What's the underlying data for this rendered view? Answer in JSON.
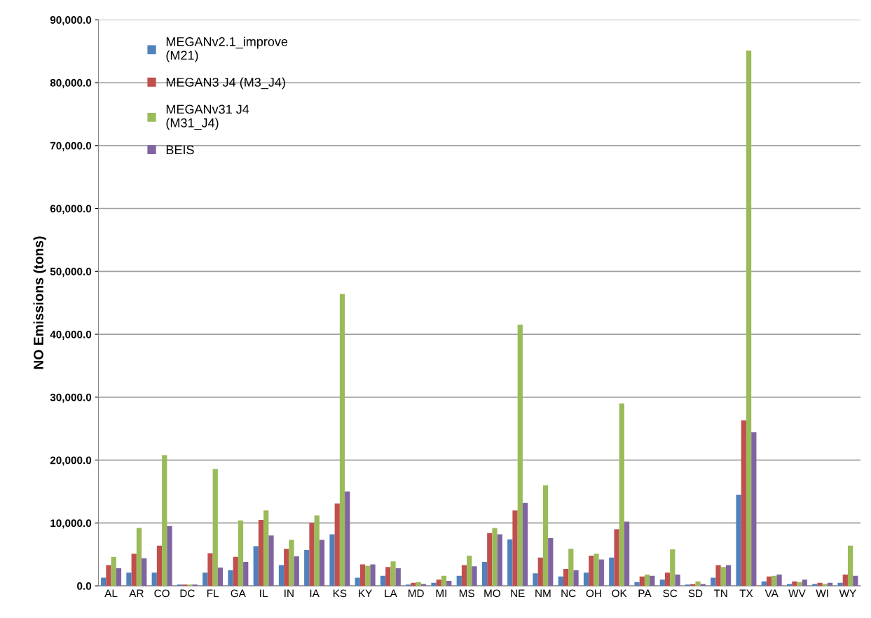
{
  "chart_data": {
    "type": "bar",
    "ylabel": "NO Emissions (tons)",
    "categories": [
      "AL",
      "AR",
      "CO",
      "DC",
      "FL",
      "GA",
      "IL",
      "IN",
      "IA",
      "KS",
      "KY",
      "LA",
      "MD",
      "MI",
      "MS",
      "MO",
      "NE",
      "NM",
      "NC",
      "OH",
      "OK",
      "PA",
      "SC",
      "SD",
      "TN",
      "TX",
      "VA",
      "WV",
      "WI",
      "WY"
    ],
    "series": [
      {
        "name": "MEGANv2.1_improve\n(M21)",
        "color": "#4f81bd",
        "values": [
          1300,
          2100,
          2100,
          200,
          2100,
          2500,
          6300,
          3300,
          5700,
          8200,
          1300,
          1600,
          200,
          500,
          1600,
          3800,
          7400,
          2000,
          1500,
          2100,
          4500,
          600,
          1000,
          200,
          1300,
          14500,
          700,
          300,
          300,
          500
        ]
      },
      {
        "name": "MEGAN3 J4 (M3_J4)",
        "color": "#c0504d",
        "values": [
          3300,
          5100,
          6400,
          200,
          5200,
          4600,
          10500,
          5900,
          10000,
          13100,
          3400,
          3000,
          500,
          1000,
          3300,
          8400,
          12000,
          4500,
          2700,
          4800,
          9000,
          1500,
          2100,
          300,
          3300,
          26300,
          1500,
          700,
          500,
          1800
        ]
      },
      {
        "name": "MEGANv31 J4\n(M31_J4)",
        "color": "#9bbb59",
        "values": [
          4600,
          9200,
          20800,
          200,
          18600,
          10400,
          12000,
          7300,
          11200,
          46400,
          3200,
          3900,
          600,
          1600,
          4800,
          9200,
          41500,
          16000,
          5900,
          5100,
          29000,
          1800,
          5800,
          700,
          3000,
          85100,
          1600,
          600,
          300,
          6400
        ]
      },
      {
        "name": "BEIS",
        "color": "#8064a2",
        "values": [
          2800,
          4400,
          9500,
          200,
          2900,
          3800,
          8000,
          4700,
          7300,
          15000,
          3400,
          2800,
          300,
          800,
          3100,
          8200,
          13200,
          7600,
          2500,
          4200,
          10200,
          1600,
          1800,
          300,
          3300,
          24400,
          1800,
          1000,
          500,
          1600
        ]
      }
    ],
    "ylim": [
      0,
      90000
    ],
    "yticks": [
      {
        "value": 0,
        "label": "0.0"
      },
      {
        "value": 10000,
        "label": "10,000.0"
      },
      {
        "value": 20000,
        "label": "20,000.0"
      },
      {
        "value": 30000,
        "label": "30,000.0"
      },
      {
        "value": 40000,
        "label": "40,000.0"
      },
      {
        "value": 50000,
        "label": "50,000.0"
      },
      {
        "value": 60000,
        "label": "60,000.0"
      },
      {
        "value": 70000,
        "label": "70,000.0"
      },
      {
        "value": 80000,
        "label": "80,000.0"
      },
      {
        "value": 90000,
        "label": "90,000.0"
      }
    ],
    "grid": "y",
    "legend": "top left"
  }
}
